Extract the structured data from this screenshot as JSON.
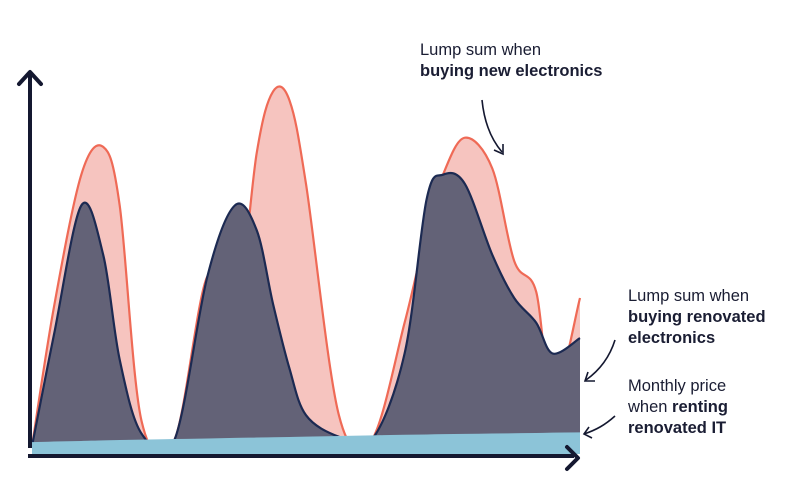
{
  "chart_data": {
    "type": "area",
    "title": "",
    "xlabel": "",
    "ylabel": "",
    "grid": false,
    "legend": "none",
    "axes": {
      "x_arrow": true,
      "y_arrow": true,
      "tick_labels": false
    },
    "x": [
      0,
      4,
      9,
      13,
      16,
      20,
      26,
      32,
      37,
      41,
      44,
      47,
      50,
      56,
      62,
      68,
      72,
      75,
      79,
      84,
      88,
      92,
      95,
      100
    ],
    "series": [
      {
        "name": "Lump sum when buying new electronics",
        "style": "area",
        "color": "#ef6a56",
        "fill": "#f6c4bf",
        "values": [
          0,
          45,
          88,
          97,
          78,
          8,
          2,
          55,
          40,
          95,
          115,
          112,
          85,
          10,
          2,
          40,
          70,
          88,
          100,
          90,
          60,
          50,
          15,
          48
        ]
      },
      {
        "name": "Lump sum when buying renovated electronics",
        "style": "area",
        "color": "#1c2a52",
        "fill": "#636277",
        "values": [
          0,
          36,
          78,
          62,
          28,
          4,
          2,
          55,
          78,
          70,
          46,
          25,
          10,
          3,
          2,
          30,
          80,
          88,
          85,
          62,
          48,
          40,
          30,
          35
        ]
      },
      {
        "name": "Monthly price when renting renovated IT",
        "style": "band",
        "color": "#8cc4d8",
        "fill": "#8cc4d8",
        "values": [
          1,
          1.2,
          1.4,
          1.6,
          1.7,
          1.8,
          2,
          2.2,
          2.4,
          2.5,
          2.6,
          2.7,
          2.8,
          3,
          3.2,
          3.4,
          3.5,
          3.6,
          3.7,
          3.8,
          3.9,
          4,
          4.1,
          4.2
        ]
      }
    ],
    "ylim": [
      0,
      120
    ],
    "xlim": [
      0,
      100
    ],
    "annotations": [
      {
        "plain": "Lump sum when",
        "bold": "buying new electronics"
      },
      {
        "plain": "Lump sum when",
        "bold": "buying renovated electronics"
      },
      {
        "plain_1": "Monthly price",
        "plain_2": "when ",
        "bold_1": "renting",
        "bold_2": "renovated IT"
      }
    ]
  },
  "colors": {
    "axis": "#141830",
    "arrow": "#141830"
  },
  "labels": {
    "new": {
      "line1": "Lump sum when",
      "line2": "buying new electronics"
    },
    "renovated": {
      "line1": "Lump sum when",
      "line2": "buying renovated",
      "line3": "electronics"
    },
    "renting": {
      "line1": "Monthly price",
      "line2_plain": "when ",
      "line2_bold": "renting",
      "line3": "renovated IT"
    }
  }
}
